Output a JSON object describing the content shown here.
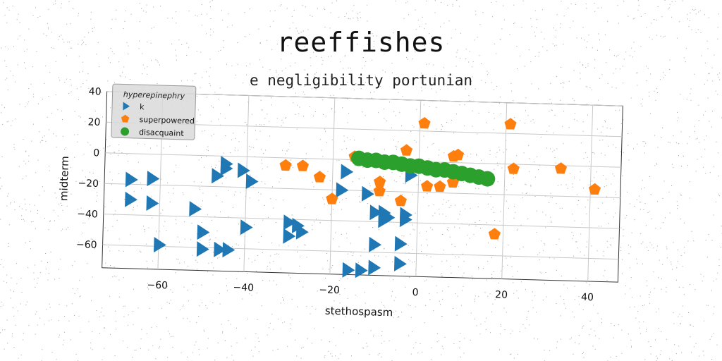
{
  "chart_data": {
    "type": "scatter",
    "title": "reeffishes",
    "subtitle": "e negligibility portunian",
    "xlabel": "stethospasm",
    "ylabel": "midterm",
    "xlim": [
      -73,
      47
    ],
    "ylim": [
      -75,
      40
    ],
    "xticks": [
      -60,
      -40,
      -20,
      0,
      20,
      40
    ],
    "yticks": [
      -60,
      -40,
      -20,
      0,
      20,
      40
    ],
    "grid": true,
    "legend": {
      "title": "hyperepinephry",
      "position": "top-left"
    },
    "series": [
      {
        "name": "k",
        "marker": "triangle-right",
        "color": "#1f77b4",
        "points": [
          [
            -67,
            -17
          ],
          [
            -62,
            -16
          ],
          [
            -67,
            -30
          ],
          [
            -62,
            -32
          ],
          [
            -52,
            -35
          ],
          [
            -60,
            -59
          ],
          [
            -50,
            -50
          ],
          [
            -50,
            -61
          ],
          [
            -46,
            -61
          ],
          [
            -44,
            -61
          ],
          [
            -47,
            -13
          ],
          [
            -45,
            -8
          ],
          [
            -41,
            -9
          ],
          [
            -45,
            -5
          ],
          [
            -39,
            -16
          ],
          [
            -40,
            -46
          ],
          [
            -30,
            -42
          ],
          [
            -28,
            -44
          ],
          [
            -30,
            -51
          ],
          [
            -27,
            -48
          ],
          [
            -17,
            -8
          ],
          [
            -18,
            -20
          ],
          [
            -12,
            -22
          ],
          [
            -10,
            -34
          ],
          [
            -8,
            -34
          ],
          [
            -8,
            -39
          ],
          [
            -7,
            -37
          ],
          [
            -3,
            -38
          ],
          [
            -3,
            -35
          ],
          [
            -10,
            -55
          ],
          [
            -4,
            -54
          ],
          [
            -16,
            -72
          ],
          [
            -13,
            -72
          ],
          [
            -10,
            -70
          ],
          [
            -4,
            -67
          ],
          [
            -2,
            -9
          ]
        ]
      },
      {
        "name": "superpowered",
        "marker": "pentagon",
        "color": "#ff7f0e",
        "points": [
          [
            -31,
            -5
          ],
          [
            -27,
            -5
          ],
          [
            -23,
            -12
          ],
          [
            -20,
            -26
          ],
          [
            -15,
            2
          ],
          [
            -9,
            -14
          ],
          [
            -9,
            -20
          ],
          [
            -4,
            -26
          ],
          [
            -3,
            7
          ],
          [
            1,
            25
          ],
          [
            2,
            -16
          ],
          [
            5,
            -16
          ],
          [
            8,
            -13
          ],
          [
            8,
            4
          ],
          [
            9,
            5
          ],
          [
            21,
            26
          ],
          [
            22,
            -3
          ],
          [
            33,
            -2
          ],
          [
            41,
            -15
          ],
          [
            18,
            -46
          ]
        ]
      },
      {
        "name": "disacquaint",
        "marker": "circle",
        "color": "#2ca02c",
        "points": [
          [
            -14,
            1
          ],
          [
            -12,
            0
          ],
          [
            -10,
            0
          ],
          [
            -8,
            -1
          ],
          [
            -6,
            -1
          ],
          [
            -4,
            -2
          ],
          [
            -2,
            -3
          ],
          [
            0,
            -3
          ],
          [
            2,
            -4
          ],
          [
            4,
            -5
          ],
          [
            6,
            -5
          ],
          [
            8,
            -6
          ],
          [
            10,
            -7
          ],
          [
            12,
            -8
          ],
          [
            14,
            -9
          ],
          [
            16,
            -10
          ]
        ]
      }
    ]
  }
}
